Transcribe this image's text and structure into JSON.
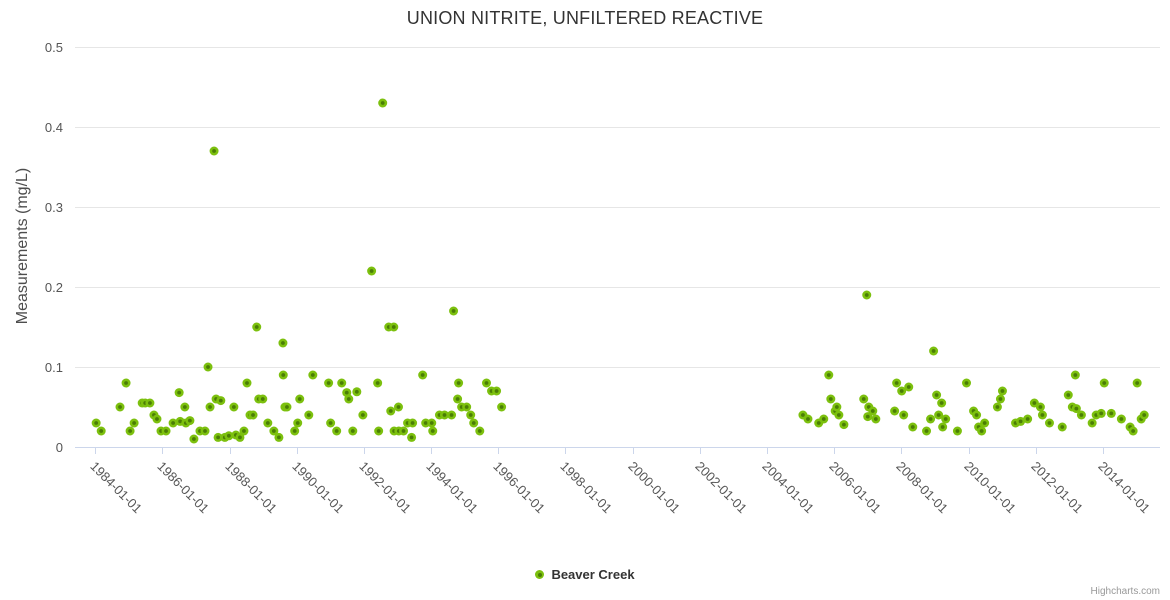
{
  "title": "UNION NITRITE, UNFILTERED REACTIVE",
  "credits_label": "Highcharts.com",
  "legend": {
    "items": [
      {
        "label": "Beaver Creek"
      }
    ]
  },
  "colors": {
    "title_text": "#333333",
    "axis_label_text": "#555555",
    "gridline": "#e6e6e6",
    "axis_line": "#ccd6eb",
    "marker_outer": "#7cc00e",
    "marker_inner": "#4a7d05",
    "credits_text": "#999999"
  },
  "chart_data": {
    "type": "scatter",
    "title": "UNION NITRITE, UNFILTERED REACTIVE",
    "xlabel": "",
    "ylabel": "Measurements (mg/L)",
    "legend_position": "bottom-center",
    "grid": "horizontal",
    "xlim": [
      1983.4,
      2015.7
    ],
    "ylim": [
      0,
      0.5
    ],
    "x_tick_years": [
      1984,
      1986,
      1988,
      1990,
      1992,
      1994,
      1996,
      1998,
      2000,
      2002,
      2004,
      2006,
      2008,
      2010,
      2012,
      2014
    ],
    "x_tick_labels": [
      "1984-01-01",
      "1986-01-01",
      "1988-01-01",
      "1990-01-01",
      "1992-01-01",
      "1994-01-01",
      "1996-01-01",
      "1998-01-01",
      "2000-01-01",
      "2002-01-01",
      "2004-01-01",
      "2006-01-01",
      "2008-01-01",
      "2010-01-01",
      "2012-01-01",
      "2014-01-01"
    ],
    "y_tick_values": [
      0,
      0.1,
      0.2,
      0.3,
      0.4,
      0.5
    ],
    "y_tick_labels": [
      "0",
      "0.1",
      "0.2",
      "0.3",
      "0.4",
      "0.5"
    ],
    "series": [
      {
        "name": "Beaver Creek",
        "points": [
          [
            1984.03,
            0.03
          ],
          [
            1984.18,
            0.02
          ],
          [
            1984.74,
            0.05
          ],
          [
            1984.92,
            0.08
          ],
          [
            1985.04,
            0.02
          ],
          [
            1985.16,
            0.03
          ],
          [
            1985.4,
            0.055
          ],
          [
            1985.49,
            0.055
          ],
          [
            1985.63,
            0.055
          ],
          [
            1985.75,
            0.04
          ],
          [
            1985.84,
            0.035
          ],
          [
            1985.96,
            0.02
          ],
          [
            1986.11,
            0.02
          ],
          [
            1986.32,
            0.03
          ],
          [
            1986.5,
            0.068
          ],
          [
            1986.53,
            0.032
          ],
          [
            1986.67,
            0.05
          ],
          [
            1986.7,
            0.03
          ],
          [
            1986.82,
            0.033
          ],
          [
            1986.94,
            0.01
          ],
          [
            1987.12,
            0.02
          ],
          [
            1987.27,
            0.02
          ],
          [
            1987.36,
            0.1
          ],
          [
            1987.42,
            0.05
          ],
          [
            1987.54,
            0.37
          ],
          [
            1987.6,
            0.06
          ],
          [
            1987.66,
            0.012
          ],
          [
            1987.74,
            0.058
          ],
          [
            1987.86,
            0.012
          ],
          [
            1987.98,
            0.014
          ],
          [
            1988.13,
            0.05
          ],
          [
            1988.19,
            0.015
          ],
          [
            1988.31,
            0.012
          ],
          [
            1988.43,
            0.02
          ],
          [
            1988.52,
            0.08
          ],
          [
            1988.61,
            0.04
          ],
          [
            1988.7,
            0.04
          ],
          [
            1988.81,
            0.15
          ],
          [
            1988.87,
            0.06
          ],
          [
            1988.99,
            0.06
          ],
          [
            1989.14,
            0.03
          ],
          [
            1989.32,
            0.02
          ],
          [
            1989.47,
            0.012
          ],
          [
            1989.59,
            0.13
          ],
          [
            1989.6,
            0.09
          ],
          [
            1989.65,
            0.05
          ],
          [
            1989.71,
            0.05
          ],
          [
            1989.94,
            0.02
          ],
          [
            1990.03,
            0.03
          ],
          [
            1990.09,
            0.06
          ],
          [
            1990.36,
            0.04
          ],
          [
            1990.48,
            0.09
          ],
          [
            1990.95,
            0.08
          ],
          [
            1991.01,
            0.03
          ],
          [
            1991.19,
            0.02
          ],
          [
            1991.34,
            0.08
          ],
          [
            1991.49,
            0.068
          ],
          [
            1991.55,
            0.06
          ],
          [
            1991.67,
            0.02
          ],
          [
            1991.79,
            0.069
          ],
          [
            1991.97,
            0.04
          ],
          [
            1992.23,
            0.22
          ],
          [
            1992.41,
            0.08
          ],
          [
            1992.44,
            0.02
          ],
          [
            1992.56,
            0.43
          ],
          [
            1992.74,
            0.15
          ],
          [
            1992.8,
            0.045
          ],
          [
            1992.89,
            0.15
          ],
          [
            1992.9,
            0.02
          ],
          [
            1993.03,
            0.05
          ],
          [
            1993.04,
            0.02
          ],
          [
            1993.18,
            0.02
          ],
          [
            1993.3,
            0.03
          ],
          [
            1993.42,
            0.012
          ],
          [
            1993.45,
            0.03
          ],
          [
            1993.75,
            0.09
          ],
          [
            1993.84,
            0.03
          ],
          [
            1994.02,
            0.03
          ],
          [
            1994.05,
            0.02
          ],
          [
            1994.25,
            0.04
          ],
          [
            1994.4,
            0.04
          ],
          [
            1994.61,
            0.04
          ],
          [
            1994.67,
            0.17
          ],
          [
            1994.79,
            0.06
          ],
          [
            1994.82,
            0.08
          ],
          [
            1994.91,
            0.05
          ],
          [
            1995.06,
            0.05
          ],
          [
            1995.18,
            0.04
          ],
          [
            1995.27,
            0.03
          ],
          [
            1995.45,
            0.02
          ],
          [
            1995.65,
            0.08
          ],
          [
            1995.8,
            0.07
          ],
          [
            1995.95,
            0.07
          ],
          [
            1996.1,
            0.05
          ],
          [
            2005.07,
            0.04
          ],
          [
            2005.22,
            0.035
          ],
          [
            2005.54,
            0.03
          ],
          [
            2005.69,
            0.035
          ],
          [
            2005.84,
            0.09
          ],
          [
            2005.9,
            0.06
          ],
          [
            2006.03,
            0.045
          ],
          [
            2006.08,
            0.05
          ],
          [
            2006.14,
            0.04
          ],
          [
            2006.29,
            0.028
          ],
          [
            2006.88,
            0.06
          ],
          [
            2006.97,
            0.19
          ],
          [
            2007.0,
            0.038
          ],
          [
            2007.03,
            0.05
          ],
          [
            2007.15,
            0.045
          ],
          [
            2007.24,
            0.035
          ],
          [
            2007.8,
            0.045
          ],
          [
            2007.86,
            0.08
          ],
          [
            2008.01,
            0.07
          ],
          [
            2008.07,
            0.04
          ],
          [
            2008.22,
            0.075
          ],
          [
            2008.34,
            0.025
          ],
          [
            2008.75,
            0.02
          ],
          [
            2008.87,
            0.035
          ],
          [
            2008.96,
            0.12
          ],
          [
            2009.05,
            0.065
          ],
          [
            2009.11,
            0.04
          ],
          [
            2009.2,
            0.055
          ],
          [
            2009.23,
            0.025
          ],
          [
            2009.32,
            0.035
          ],
          [
            2009.67,
            0.02
          ],
          [
            2009.94,
            0.08
          ],
          [
            2010.15,
            0.045
          ],
          [
            2010.24,
            0.04
          ],
          [
            2010.3,
            0.025
          ],
          [
            2010.39,
            0.02
          ],
          [
            2010.48,
            0.03
          ],
          [
            2010.86,
            0.05
          ],
          [
            2010.95,
            0.06
          ],
          [
            2011.01,
            0.07
          ],
          [
            2011.4,
            0.03
          ],
          [
            2011.55,
            0.032
          ],
          [
            2011.76,
            0.035
          ],
          [
            2011.96,
            0.055
          ],
          [
            2012.14,
            0.05
          ],
          [
            2012.2,
            0.04
          ],
          [
            2012.41,
            0.03
          ],
          [
            2012.79,
            0.025
          ],
          [
            2012.97,
            0.065
          ],
          [
            2013.09,
            0.05
          ],
          [
            2013.18,
            0.09
          ],
          [
            2013.21,
            0.048
          ],
          [
            2013.36,
            0.04
          ],
          [
            2013.68,
            0.03
          ],
          [
            2013.8,
            0.04
          ],
          [
            2013.95,
            0.042
          ],
          [
            2014.04,
            0.08
          ],
          [
            2014.25,
            0.042
          ],
          [
            2014.55,
            0.035
          ],
          [
            2014.81,
            0.025
          ],
          [
            2014.9,
            0.02
          ],
          [
            2015.02,
            0.08
          ],
          [
            2015.14,
            0.035
          ],
          [
            2015.23,
            0.04
          ]
        ]
      }
    ]
  }
}
